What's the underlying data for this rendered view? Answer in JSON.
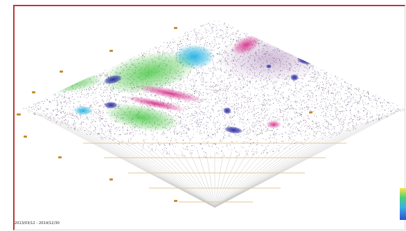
{
  "figure": {
    "caption": "2013/03/12 - 2014/12/30",
    "colors": {
      "frame_border": "#b23a3a",
      "point_base": "#6b4a78",
      "grid_lines": "#c8c8c8",
      "grid_labels": "#c58a2a",
      "cluster_cyan": "#27b6e0",
      "cluster_green": "#44c43c",
      "cluster_magenta": "#d62a8a",
      "cluster_blue": "#2b2ea8",
      "colorbar_top": "#ffe24a",
      "colorbar_bottom": "#2f4fd0"
    }
  }
}
